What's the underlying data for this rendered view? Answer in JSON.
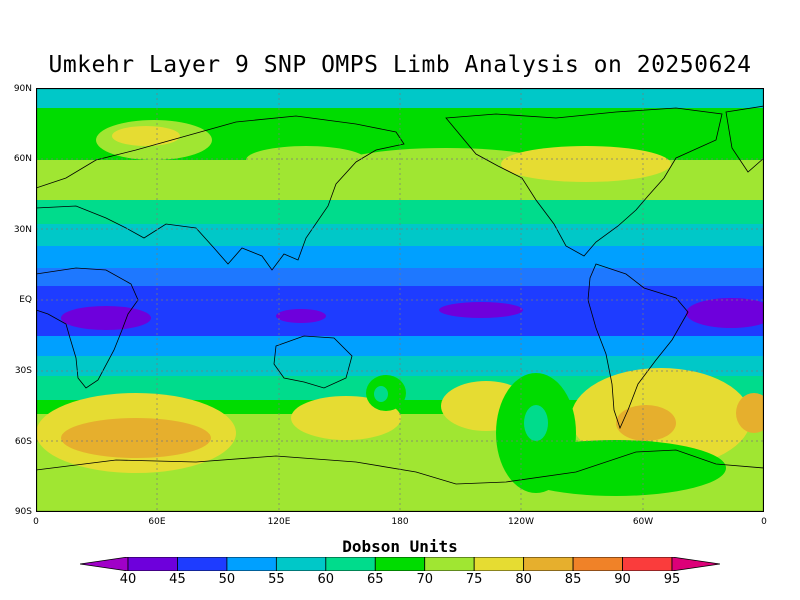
{
  "title": "Umkehr Layer 9 SNP OMPS Limb Analysis on 20250624",
  "y_ticks": [
    "90N",
    "60N",
    "30N",
    "EQ",
    "30S",
    "60S",
    "90S"
  ],
  "x_ticks": [
    "0",
    "60E",
    "120E",
    "180",
    "120W",
    "60W",
    "0"
  ],
  "colorbar": {
    "title": "Dobson Units",
    "levels": [
      40,
      45,
      50,
      55,
      60,
      65,
      70,
      75,
      80,
      85,
      90,
      95
    ],
    "colors": [
      "#a000c8",
      "#6e00dc",
      "#1e3cff",
      "#00a0ff",
      "#00c8c8",
      "#00dc8c",
      "#00dc00",
      "#a0e632",
      "#e6dc32",
      "#e6af2d",
      "#f08228",
      "#fa3c3c",
      "#dc0078"
    ]
  },
  "chart_data": {
    "type": "heatmap",
    "title": "Umkehr Layer 9 SNP OMPS Limb Analysis on 20250624",
    "xlabel": "",
    "ylabel": "",
    "xlim": [
      0,
      360
    ],
    "ylim": [
      -90,
      90
    ],
    "units": "Dobson Units",
    "latitude_profile": [
      {
        "lat": 85,
        "value": 62
      },
      {
        "lat": 70,
        "value": 70
      },
      {
        "lat": 55,
        "value": 74
      },
      {
        "lat": 40,
        "value": 67
      },
      {
        "lat": 25,
        "value": 60
      },
      {
        "lat": 10,
        "value": 52
      },
      {
        "lat": 0,
        "value": 46
      },
      {
        "lat": -10,
        "value": 47
      },
      {
        "lat": -20,
        "value": 56
      },
      {
        "lat": -35,
        "value": 73
      },
      {
        "lat": -50,
        "value": 78
      },
      {
        "lat": -65,
        "value": 80
      },
      {
        "lat": -80,
        "value": 74
      }
    ]
  }
}
